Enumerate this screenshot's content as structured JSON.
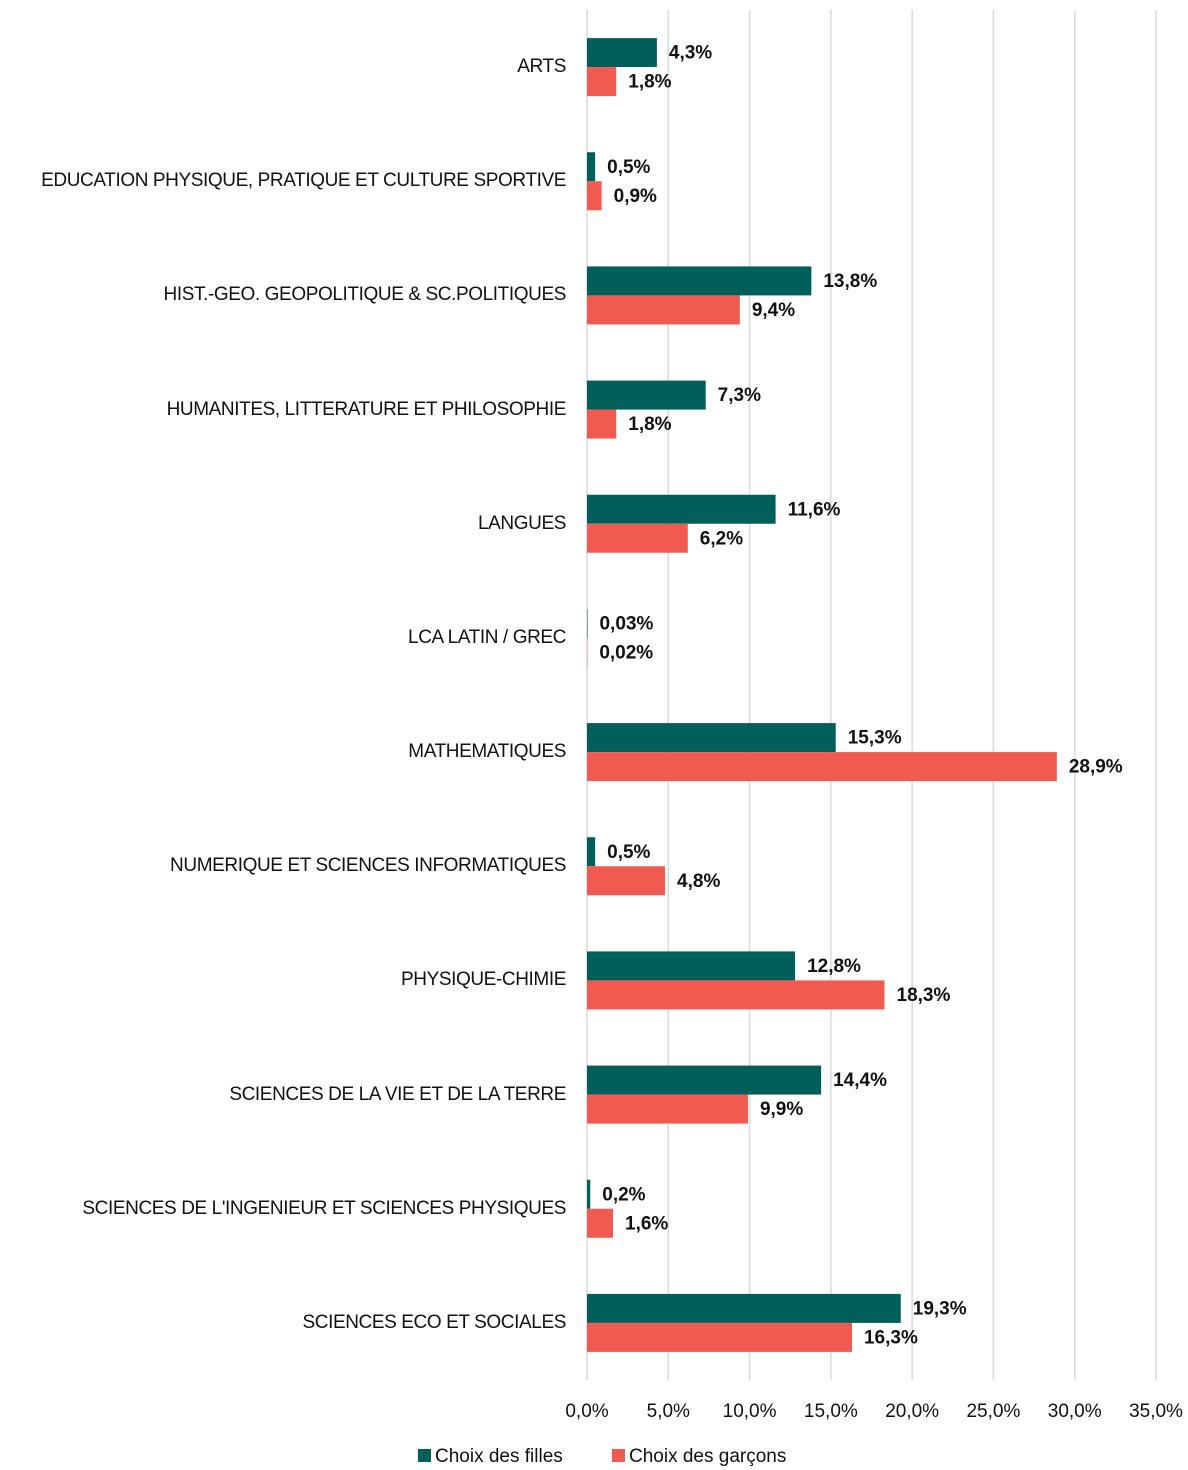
{
  "chart_data": {
    "type": "barh",
    "categories": [
      "ARTS",
      "EDUCATION PHYSIQUE, PRATIQUE ET CULTURE SPORTIVE",
      "HIST.-GEO. GEOPOLITIQUE & SC.POLITIQUES",
      "HUMANITES, LITTERATURE ET PHILOSOPHIE",
      "LANGUES",
      "LCA LATIN / GREC",
      "MATHEMATIQUES",
      "NUMERIQUE ET SCIENCES INFORMATIQUES",
      "PHYSIQUE-CHIMIE",
      "SCIENCES DE LA VIE ET DE LA TERRE",
      "SCIENCES DE L'INGENIEUR ET SCIENCES PHYSIQUES",
      "SCIENCES ECO ET SOCIALES"
    ],
    "series": [
      {
        "name": "Choix des filles",
        "color": "#005f5a",
        "values": [
          4.3,
          0.5,
          13.8,
          7.3,
          11.6,
          0.03,
          15.3,
          0.5,
          12.8,
          14.4,
          0.2,
          19.3
        ],
        "value_labels": [
          "4,3%",
          "0,5%",
          "13,8%",
          "7,3%",
          "11,6%",
          "0,03%",
          "15,3%",
          "0,5%",
          "12,8%",
          "14,4%",
          "0,2%",
          "19,3%"
        ]
      },
      {
        "name": "Choix des garçons",
        "color": "#f05a50",
        "values": [
          1.8,
          0.9,
          9.4,
          1.8,
          6.2,
          0.02,
          28.9,
          4.8,
          18.3,
          9.9,
          1.6,
          16.3
        ],
        "value_labels": [
          "1,8%",
          "0,9%",
          "9,4%",
          "1,8%",
          "6,2%",
          "0,02%",
          "28,9%",
          "4,8%",
          "18,3%",
          "9,9%",
          "1,6%",
          "16,3%"
        ]
      }
    ],
    "xlim": [
      0,
      35
    ],
    "xticks": [
      {
        "value": 0,
        "label": "0,0%"
      },
      {
        "value": 5,
        "label": "5,0%"
      },
      {
        "value": 10,
        "label": "10,0%"
      },
      {
        "value": 15,
        "label": "15,0%"
      },
      {
        "value": 20,
        "label": "20,0%"
      },
      {
        "value": 25,
        "label": "25,0%"
      },
      {
        "value": 30,
        "label": "30,0%"
      },
      {
        "value": 35,
        "label": "35,0%"
      }
    ],
    "grid": true,
    "legend": "bottom"
  }
}
